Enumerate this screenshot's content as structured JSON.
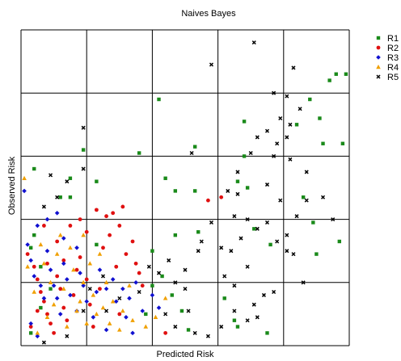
{
  "chart_data": {
    "type": "scatter",
    "title": "Naives Bayes",
    "xlabel": "Predicted Risk",
    "ylabel": "Observed Risk",
    "xlim": [
      0,
      5
    ],
    "ylim": [
      0,
      5
    ],
    "grid": true,
    "legend_position": "right",
    "series": [
      {
        "name": "R1",
        "color": "#1a8a1a",
        "marker": "square",
        "points": [
          [
            4.8,
            4.3
          ],
          [
            4.95,
            4.3
          ],
          [
            4.7,
            4.2
          ],
          [
            4.4,
            3.9
          ],
          [
            4.55,
            3.6
          ],
          [
            4.2,
            3.5
          ],
          [
            4.9,
            3.2
          ],
          [
            4.6,
            3.2
          ],
          [
            2.1,
            3.9
          ],
          [
            0.95,
            3.1
          ],
          [
            1.8,
            3.05
          ],
          [
            2.65,
            3.15
          ],
          [
            3.4,
            3.55
          ],
          [
            3.4,
            3.0
          ],
          [
            2.2,
            2.65
          ],
          [
            2.35,
            2.45
          ],
          [
            2.65,
            2.45
          ],
          [
            0.75,
            2.65
          ],
          [
            0.75,
            2.35
          ],
          [
            1.15,
            2.6
          ],
          [
            0.2,
            2.8
          ],
          [
            0.6,
            2.35
          ],
          [
            4.3,
            2.35
          ],
          [
            4.45,
            1.95
          ],
          [
            4.85,
            1.65
          ],
          [
            4.5,
            1.45
          ],
          [
            3.8,
            1.6
          ],
          [
            3.45,
            2.5
          ],
          [
            3.3,
            2.6
          ],
          [
            2.7,
            1.8
          ],
          [
            3.55,
            1.85
          ],
          [
            2.35,
            1.75
          ],
          [
            2.0,
            1.5
          ],
          [
            1.15,
            1.6
          ],
          [
            0.2,
            1.75
          ],
          [
            0.15,
            1.55
          ],
          [
            0.3,
            1.25
          ],
          [
            2.15,
            1.1
          ],
          [
            2.3,
            0.8
          ],
          [
            2.45,
            0.55
          ],
          [
            2.55,
            0.25
          ],
          [
            3.25,
            0.4
          ],
          [
            3.3,
            0.3
          ],
          [
            3.1,
            0.75
          ],
          [
            2.0,
            0.95
          ],
          [
            1.9,
            0.5
          ],
          [
            0.3,
            0.6
          ],
          [
            0.15,
            0.2
          ],
          [
            0.45,
            0.9
          ],
          [
            3.75,
            0.2
          ]
        ]
      },
      {
        "name": "R2",
        "color": "#e01010",
        "marker": "circle",
        "points": [
          [
            0.1,
            1.45
          ],
          [
            0.2,
            1.25
          ],
          [
            0.25,
            1.05
          ],
          [
            0.3,
            0.85
          ],
          [
            0.35,
            0.7
          ],
          [
            0.4,
            0.5
          ],
          [
            0.45,
            0.35
          ],
          [
            0.5,
            0.2
          ],
          [
            0.55,
            1.1
          ],
          [
            0.6,
            0.9
          ],
          [
            0.65,
            0.6
          ],
          [
            0.7,
            0.4
          ],
          [
            0.8,
            0.8
          ],
          [
            0.85,
            1.2
          ],
          [
            0.9,
            1.4
          ],
          [
            1.0,
            1.05
          ],
          [
            1.05,
            0.65
          ],
          [
            1.1,
            0.3
          ],
          [
            1.2,
            0.9
          ],
          [
            1.25,
            1.55
          ],
          [
            1.3,
            2.05
          ],
          [
            1.35,
            1.75
          ],
          [
            1.4,
            2.1
          ],
          [
            1.45,
            1.25
          ],
          [
            1.5,
            1.9
          ],
          [
            1.55,
            2.2
          ],
          [
            1.6,
            1.45
          ],
          [
            1.7,
            1.65
          ],
          [
            1.75,
            1.3
          ],
          [
            1.8,
            1.15
          ],
          [
            1.0,
            1.8
          ],
          [
            0.9,
            2.0
          ],
          [
            0.75,
            1.9
          ],
          [
            1.15,
            2.15
          ],
          [
            0.55,
            1.65
          ],
          [
            0.35,
            1.9
          ],
          [
            0.25,
            0.55
          ],
          [
            0.15,
            0.3
          ],
          [
            0.4,
            1.3
          ],
          [
            0.65,
            1.35
          ],
          [
            2.85,
            2.3
          ],
          [
            3.05,
            2.35
          ],
          [
            2.2,
            0.2
          ],
          [
            1.5,
            0.5
          ],
          [
            1.85,
            0.95
          ]
        ]
      },
      {
        "name": "R3",
        "color": "#1010d0",
        "marker": "diamond",
        "points": [
          [
            0.1,
            1.6
          ],
          [
            0.15,
            1.35
          ],
          [
            0.2,
            1.1
          ],
          [
            0.3,
            0.95
          ],
          [
            0.35,
            0.75
          ],
          [
            0.4,
            1.5
          ],
          [
            0.45,
            1.2
          ],
          [
            0.5,
            0.95
          ],
          [
            0.55,
            0.75
          ],
          [
            0.6,
            0.5
          ],
          [
            0.65,
            1.3
          ],
          [
            0.7,
            1.05
          ],
          [
            0.75,
            0.8
          ],
          [
            0.85,
            0.55
          ],
          [
            0.9,
            1.15
          ],
          [
            0.95,
            0.95
          ],
          [
            1.0,
            0.7
          ],
          [
            1.1,
            0.45
          ],
          [
            1.15,
            0.85
          ],
          [
            1.2,
            1.2
          ],
          [
            1.3,
            0.9
          ],
          [
            1.4,
            1.05
          ],
          [
            1.45,
            0.7
          ],
          [
            1.55,
            0.9
          ],
          [
            1.6,
            0.45
          ],
          [
            1.65,
            0.75
          ],
          [
            1.75,
            1.0
          ],
          [
            1.85,
            0.55
          ],
          [
            2.0,
            0.8
          ],
          [
            2.1,
            0.6
          ],
          [
            0.55,
            2.1
          ],
          [
            0.4,
            2.0
          ],
          [
            0.25,
            1.9
          ],
          [
            0.65,
            1.7
          ],
          [
            0.15,
            0.35
          ],
          [
            0.25,
            0.15
          ],
          [
            1.3,
            0.25
          ],
          [
            1.7,
            0.2
          ],
          [
            0.05,
            2.45
          ],
          [
            0.85,
            1.55
          ]
        ]
      },
      {
        "name": "R4",
        "color": "#f0a000",
        "marker": "triangle",
        "points": [
          [
            0.05,
            2.65
          ],
          [
            0.1,
            1.25
          ],
          [
            0.2,
            0.85
          ],
          [
            0.3,
            1.6
          ],
          [
            0.35,
            1.3
          ],
          [
            0.45,
            1.0
          ],
          [
            0.5,
            0.65
          ],
          [
            0.55,
            1.45
          ],
          [
            0.65,
            0.9
          ],
          [
            0.7,
            0.3
          ],
          [
            0.8,
            1.2
          ],
          [
            0.85,
            0.55
          ],
          [
            0.9,
            0.7
          ],
          [
            0.95,
            1.0
          ],
          [
            1.0,
            0.35
          ],
          [
            1.05,
            1.3
          ],
          [
            1.1,
            0.8
          ],
          [
            1.15,
            0.5
          ],
          [
            1.2,
            1.45
          ],
          [
            1.25,
            0.6
          ],
          [
            1.3,
            1.0
          ],
          [
            1.35,
            0.35
          ],
          [
            1.4,
            0.7
          ],
          [
            1.5,
            0.25
          ],
          [
            1.55,
            0.55
          ],
          [
            1.7,
            0.4
          ],
          [
            1.9,
            0.3
          ],
          [
            2.05,
            0.45
          ],
          [
            2.2,
            0.75
          ],
          [
            0.6,
            1.75
          ],
          [
            0.75,
            1.55
          ],
          [
            0.4,
            0.45
          ],
          [
            0.25,
            0.2
          ],
          [
            1.65,
            0.95
          ],
          [
            0.95,
            1.75
          ]
        ]
      },
      {
        "name": "R5",
        "color": "#000000",
        "marker": "x",
        "points": [
          [
            3.55,
            4.8
          ],
          [
            2.9,
            4.45
          ],
          [
            4.15,
            4.4
          ],
          [
            3.85,
            4.0
          ],
          [
            4.05,
            3.95
          ],
          [
            4.25,
            3.75
          ],
          [
            3.95,
            3.6
          ],
          [
            4.1,
            3.5
          ],
          [
            3.75,
            3.4
          ],
          [
            3.9,
            3.2
          ],
          [
            4.05,
            3.3
          ],
          [
            3.6,
            3.3
          ],
          [
            3.5,
            3.05
          ],
          [
            3.85,
            3.0
          ],
          [
            4.1,
            2.95
          ],
          [
            3.3,
            2.75
          ],
          [
            3.15,
            2.45
          ],
          [
            3.3,
            2.4
          ],
          [
            3.75,
            2.55
          ],
          [
            3.95,
            2.3
          ],
          [
            4.2,
            2.05
          ],
          [
            4.35,
            2.3
          ],
          [
            3.25,
            2.05
          ],
          [
            3.45,
            2.0
          ],
          [
            3.6,
            1.85
          ],
          [
            3.75,
            1.95
          ],
          [
            3.9,
            1.65
          ],
          [
            4.05,
            1.75
          ],
          [
            4.15,
            1.45
          ],
          [
            3.35,
            1.7
          ],
          [
            3.2,
            1.5
          ],
          [
            3.05,
            1.55
          ],
          [
            3.1,
            1.1
          ],
          [
            3.25,
            0.95
          ],
          [
            3.45,
            1.25
          ],
          [
            3.55,
            0.65
          ],
          [
            3.7,
            0.8
          ],
          [
            3.6,
            0.45
          ],
          [
            3.45,
            0.4
          ],
          [
            3.25,
            0.55
          ],
          [
            3.05,
            0.3
          ],
          [
            2.85,
            0.15
          ],
          [
            2.65,
            0.2
          ],
          [
            2.55,
            0.55
          ],
          [
            2.35,
            0.3
          ],
          [
            2.2,
            0.5
          ],
          [
            2.35,
            1.0
          ],
          [
            2.25,
            1.35
          ],
          [
            2.5,
            1.2
          ],
          [
            2.7,
            1.5
          ],
          [
            2.9,
            1.95
          ],
          [
            2.75,
            1.65
          ],
          [
            2.1,
            1.15
          ],
          [
            1.95,
            1.25
          ],
          [
            1.8,
            0.85
          ],
          [
            1.5,
            0.75
          ],
          [
            1.25,
            1.1
          ],
          [
            0.95,
            0.55
          ],
          [
            0.7,
            0.15
          ],
          [
            1.05,
            0.9
          ],
          [
            0.95,
            3.45
          ],
          [
            0.45,
            2.7
          ],
          [
            0.55,
            2.35
          ],
          [
            0.7,
            2.6
          ],
          [
            0.95,
            2.8
          ],
          [
            0.35,
            2.2
          ],
          [
            2.6,
            3.05
          ],
          [
            4.35,
            2.75
          ],
          [
            4.6,
            2.35
          ],
          [
            4.75,
            2.0
          ],
          [
            4.05,
            1.5
          ],
          [
            3.85,
            0.85
          ],
          [
            4.3,
            1.0
          ],
          [
            2.5,
            0.9
          ],
          [
            1.3,
            0.55
          ],
          [
            0.35,
            0.05
          ]
        ]
      }
    ]
  }
}
